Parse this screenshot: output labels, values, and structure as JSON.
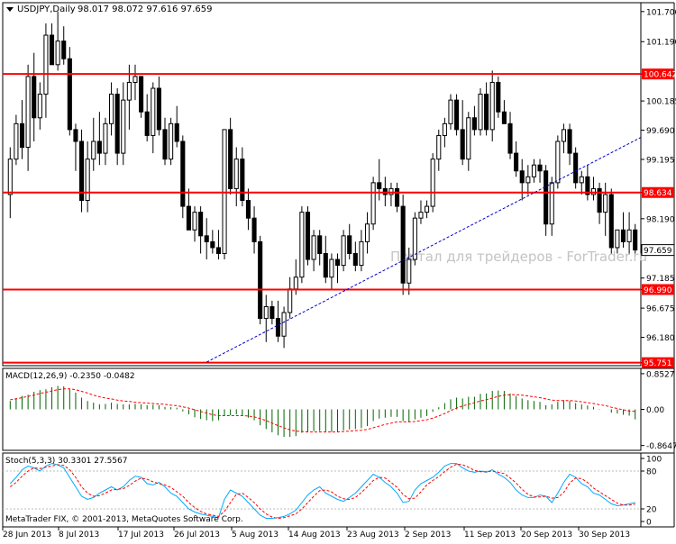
{
  "chart_data": {
    "type": "candlestick",
    "title": "USDJPY,Daily",
    "ohlc_readout": "98.017 98.072 97.616 97.659",
    "price_axis_ticks": [
      "101.700",
      "101.190",
      "100.642",
      "100.185",
      "99.690",
      "99.195",
      "98.634",
      "98.190",
      "97.659",
      "97.185",
      "96.990",
      "96.675",
      "96.180",
      "95.751"
    ],
    "date_axis_ticks": [
      "28 Jun 2013",
      "8 Jul 2013",
      "17 Jul 2013",
      "26 Jul 2013",
      "5 Aug 2013",
      "14 Aug 2013",
      "23 Aug 2013",
      "2 Sep 2013",
      "11 Sep 2013",
      "20 Sep 2013",
      "30 Sep 2013"
    ],
    "ylim": [
      95.7,
      101.85
    ],
    "current_price": 97.659,
    "horizontal_levels": [
      {
        "value": 100.642,
        "label": "100.642",
        "color": "#ff0000"
      },
      {
        "value": 98.634,
        "label": "98.634",
        "color": "#ff0000"
      },
      {
        "value": 96.99,
        "label": "96.990",
        "color": "#ff0000"
      },
      {
        "value": 95.751,
        "label": "95.751",
        "color": "#ff0000"
      }
    ],
    "trendline": {
      "color": "#0000cc",
      "style": "dashed",
      "from": {
        "bar": 33,
        "price": 95.76
      },
      "to": {
        "bar": 97,
        "price": 99.1
      }
    },
    "bars": [
      [
        98.6,
        99.4,
        98.2,
        99.2
      ],
      [
        99.2,
        99.95,
        99.1,
        99.8
      ],
      [
        99.8,
        100.2,
        99.2,
        99.4
      ],
      [
        99.4,
        100.8,
        99.0,
        100.6
      ],
      [
        100.6,
        101.0,
        99.5,
        99.9
      ],
      [
        99.9,
        100.5,
        99.7,
        100.3
      ],
      [
        100.3,
        101.5,
        99.9,
        101.3
      ],
      [
        101.3,
        101.5,
        100.9,
        100.8
      ],
      [
        100.8,
        101.7,
        100.7,
        101.2
      ],
      [
        101.2,
        101.45,
        100.8,
        100.9
      ],
      [
        100.9,
        101.1,
        99.6,
        99.7
      ],
      [
        99.7,
        99.8,
        99.0,
        99.5
      ],
      [
        99.5,
        99.7,
        98.3,
        98.5
      ],
      [
        98.5,
        99.5,
        98.3,
        99.2
      ],
      [
        99.2,
        99.9,
        99.0,
        99.5
      ],
      [
        99.5,
        100.0,
        99.1,
        99.3
      ],
      [
        99.3,
        99.9,
        99.1,
        99.8
      ],
      [
        99.8,
        100.5,
        99.6,
        100.3
      ],
      [
        100.3,
        100.4,
        99.1,
        99.3
      ],
      [
        99.3,
        100.5,
        99.1,
        100.2
      ],
      [
        100.2,
        100.8,
        99.7,
        100.5
      ],
      [
        100.5,
        100.8,
        100.2,
        100.6
      ],
      [
        100.6,
        100.6,
        99.9,
        100.0
      ],
      [
        100.0,
        100.3,
        99.5,
        99.6
      ],
      [
        99.6,
        100.5,
        99.3,
        100.4
      ],
      [
        100.4,
        100.6,
        99.6,
        99.7
      ],
      [
        99.7,
        99.9,
        99.1,
        99.2
      ],
      [
        99.2,
        99.9,
        99.1,
        99.8
      ],
      [
        99.8,
        100.1,
        99.4,
        99.5
      ],
      [
        99.5,
        99.6,
        98.2,
        98.4
      ],
      [
        98.4,
        98.7,
        98.0,
        98.0
      ],
      [
        98.0,
        98.4,
        97.8,
        98.3
      ],
      [
        98.3,
        98.4,
        97.6,
        97.9
      ],
      [
        97.9,
        98.2,
        97.5,
        97.8
      ],
      [
        97.8,
        98.0,
        97.6,
        97.7
      ],
      [
        97.7,
        98.0,
        97.5,
        97.6
      ],
      [
        97.6,
        99.7,
        97.5,
        99.7
      ],
      [
        99.7,
        99.9,
        98.6,
        98.7
      ],
      [
        98.7,
        99.4,
        98.4,
        99.2
      ],
      [
        99.2,
        99.4,
        98.4,
        98.5
      ],
      [
        98.5,
        98.7,
        98.0,
        98.2
      ],
      [
        98.2,
        98.4,
        97.6,
        97.8
      ],
      [
        97.8,
        97.9,
        96.4,
        96.5
      ],
      [
        96.5,
        96.9,
        96.1,
        96.7
      ],
      [
        96.7,
        96.8,
        96.4,
        96.5
      ],
      [
        96.5,
        96.8,
        96.1,
        96.2
      ],
      [
        96.2,
        96.7,
        96.0,
        96.6
      ],
      [
        96.6,
        97.2,
        96.5,
        97.0
      ],
      [
        97.0,
        97.5,
        96.9,
        97.2
      ],
      [
        97.2,
        98.4,
        97.1,
        98.3
      ],
      [
        98.3,
        98.4,
        97.4,
        97.5
      ],
      [
        97.5,
        98.0,
        97.3,
        97.9
      ],
      [
        97.9,
        98.0,
        97.4,
        97.6
      ],
      [
        97.6,
        97.9,
        97.1,
        97.2
      ],
      [
        97.2,
        97.6,
        97.0,
        97.5
      ],
      [
        97.5,
        97.6,
        97.1,
        97.4
      ],
      [
        97.4,
        98.0,
        97.3,
        97.9
      ],
      [
        97.9,
        98.1,
        97.5,
        97.6
      ],
      [
        97.6,
        97.8,
        97.3,
        97.4
      ],
      [
        97.4,
        98.0,
        97.3,
        97.8
      ],
      [
        97.8,
        98.3,
        97.6,
        98.1
      ],
      [
        98.1,
        98.9,
        98.0,
        98.8
      ],
      [
        98.8,
        99.2,
        98.5,
        98.7
      ],
      [
        98.7,
        98.9,
        98.4,
        98.6
      ],
      [
        98.6,
        98.8,
        98.4,
        98.7
      ],
      [
        98.7,
        98.8,
        98.3,
        98.4
      ],
      [
        98.4,
        98.6,
        96.9,
        97.1
      ],
      [
        97.1,
        97.7,
        96.9,
        97.5
      ],
      [
        97.5,
        98.3,
        97.4,
        98.2
      ],
      [
        98.2,
        98.5,
        98.1,
        98.3
      ],
      [
        98.3,
        98.5,
        98.2,
        98.4
      ],
      [
        98.4,
        99.3,
        98.3,
        99.2
      ],
      [
        99.2,
        99.7,
        99.0,
        99.6
      ],
      [
        99.6,
        99.9,
        99.4,
        99.8
      ],
      [
        99.8,
        100.3,
        99.7,
        100.2
      ],
      [
        100.2,
        100.3,
        99.6,
        99.7
      ],
      [
        99.7,
        100.2,
        99.1,
        99.2
      ],
      [
        99.2,
        100.0,
        99.0,
        99.9
      ],
      [
        99.9,
        100.1,
        99.6,
        99.7
      ],
      [
        99.7,
        100.4,
        99.6,
        100.3
      ],
      [
        100.3,
        100.5,
        99.6,
        99.7
      ],
      [
        99.7,
        100.7,
        99.5,
        100.5
      ],
      [
        100.5,
        100.6,
        99.9,
        100.0
      ],
      [
        100.0,
        100.2,
        99.8,
        99.8
      ],
      [
        99.8,
        100.0,
        99.2,
        99.3
      ],
      [
        99.3,
        99.5,
        98.9,
        99.0
      ],
      [
        99.0,
        99.2,
        98.5,
        98.8
      ],
      [
        98.8,
        99.1,
        98.6,
        98.9
      ],
      [
        98.9,
        99.2,
        98.8,
        99.1
      ],
      [
        99.1,
        99.2,
        98.8,
        99.0
      ],
      [
        99.0,
        99.1,
        97.9,
        98.1
      ],
      [
        98.1,
        98.9,
        97.9,
        98.8
      ],
      [
        98.8,
        99.6,
        98.7,
        99.5
      ],
      [
        99.5,
        99.8,
        99.3,
        99.7
      ],
      [
        99.7,
        99.8,
        99.1,
        99.3
      ],
      [
        99.3,
        99.4,
        98.7,
        98.8
      ],
      [
        98.8,
        99.0,
        98.6,
        98.9
      ],
      [
        98.9,
        99.1,
        98.5,
        98.6
      ],
      [
        98.6,
        98.9,
        98.5,
        98.7
      ],
      [
        98.7,
        98.8,
        98.1,
        98.3
      ],
      [
        98.3,
        98.8,
        97.9,
        98.6
      ],
      [
        98.6,
        98.7,
        97.6,
        97.7
      ],
      [
        97.7,
        98.0,
        97.6,
        98.0
      ],
      [
        98.0,
        98.3,
        97.7,
        97.8
      ],
      [
        97.8,
        98.3,
        97.6,
        98.0
      ],
      [
        98.0,
        98.1,
        97.6,
        97.66
      ]
    ],
    "macd": {
      "label": "MACD(12,26,9) -0.2350 -0.0482",
      "ylim": [
        -0.98,
        0.98
      ],
      "ticks": [
        "0.8527",
        "0.00",
        "-0.8647"
      ],
      "hist_color": "#006400",
      "signal_color": "#ff0000",
      "histogram": [
        0.2,
        0.27,
        0.32,
        0.35,
        0.42,
        0.46,
        0.48,
        0.53,
        0.56,
        0.55,
        0.48,
        0.4,
        0.28,
        0.2,
        0.16,
        0.12,
        0.13,
        0.16,
        0.13,
        0.12,
        0.12,
        0.13,
        0.12,
        0.1,
        0.11,
        0.1,
        0.06,
        0.05,
        0.04,
        -0.05,
        -0.12,
        -0.19,
        -0.23,
        -0.26,
        -0.28,
        -0.26,
        -0.15,
        -0.14,
        -0.12,
        -0.14,
        -0.2,
        -0.26,
        -0.38,
        -0.47,
        -0.55,
        -0.62,
        -0.66,
        -0.66,
        -0.64,
        -0.56,
        -0.54,
        -0.52,
        -0.52,
        -0.53,
        -0.54,
        -0.54,
        -0.5,
        -0.48,
        -0.47,
        -0.45,
        -0.4,
        -0.28,
        -0.22,
        -0.2,
        -0.18,
        -0.18,
        -0.28,
        -0.3,
        -0.24,
        -0.2,
        -0.16,
        -0.06,
        0.05,
        0.15,
        0.24,
        0.28,
        0.26,
        0.3,
        0.3,
        0.37,
        0.38,
        0.44,
        0.45,
        0.44,
        0.38,
        0.32,
        0.26,
        0.22,
        0.2,
        0.18,
        0.1,
        0.12,
        0.18,
        0.22,
        0.2,
        0.15,
        0.12,
        0.09,
        0.06,
        0.01,
        0.0,
        -0.08,
        -0.1,
        -0.13,
        -0.15,
        -0.24
      ],
      "signal": [
        0.23,
        0.25,
        0.28,
        0.31,
        0.34,
        0.38,
        0.41,
        0.44,
        0.47,
        0.49,
        0.49,
        0.47,
        0.43,
        0.39,
        0.34,
        0.3,
        0.27,
        0.25,
        0.22,
        0.2,
        0.19,
        0.17,
        0.16,
        0.15,
        0.14,
        0.13,
        0.12,
        0.1,
        0.09,
        0.06,
        0.03,
        -0.01,
        -0.05,
        -0.09,
        -0.13,
        -0.15,
        -0.15,
        -0.15,
        -0.15,
        -0.15,
        -0.16,
        -0.18,
        -0.22,
        -0.27,
        -0.33,
        -0.39,
        -0.44,
        -0.49,
        -0.52,
        -0.53,
        -0.54,
        -0.54,
        -0.54,
        -0.54,
        -0.54,
        -0.54,
        -0.53,
        -0.52,
        -0.51,
        -0.5,
        -0.48,
        -0.44,
        -0.4,
        -0.36,
        -0.33,
        -0.3,
        -0.3,
        -0.3,
        -0.29,
        -0.27,
        -0.25,
        -0.21,
        -0.16,
        -0.1,
        -0.03,
        0.03,
        0.08,
        0.12,
        0.16,
        0.2,
        0.23,
        0.27,
        0.31,
        0.34,
        0.35,
        0.35,
        0.34,
        0.32,
        0.3,
        0.28,
        0.25,
        0.22,
        0.21,
        0.21,
        0.21,
        0.2,
        0.18,
        0.16,
        0.14,
        0.11,
        0.09,
        0.05,
        0.02,
        -0.01,
        -0.04,
        -0.05
      ]
    },
    "stochastic": {
      "label": "Stoch(5,3,3) 30.3301 27.5567",
      "ylim": [
        0,
        100
      ],
      "ticks": [
        "100",
        "80",
        "20",
        "0"
      ],
      "main_color": "#00aaff",
      "signal_color": "#ff0000",
      "main": [
        60,
        70,
        82,
        88,
        85,
        80,
        88,
        92,
        90,
        85,
        70,
        55,
        40,
        35,
        38,
        45,
        50,
        55,
        50,
        55,
        65,
        72,
        70,
        60,
        58,
        62,
        55,
        45,
        40,
        30,
        20,
        15,
        12,
        10,
        8,
        6,
        35,
        50,
        45,
        40,
        30,
        20,
        10,
        5,
        5,
        6,
        8,
        12,
        18,
        30,
        42,
        50,
        55,
        45,
        40,
        35,
        32,
        38,
        45,
        55,
        65,
        75,
        70,
        62,
        55,
        45,
        30,
        32,
        50,
        60,
        65,
        70,
        78,
        88,
        92,
        92,
        85,
        80,
        78,
        80,
        78,
        82,
        75,
        70,
        62,
        50,
        42,
        38,
        38,
        42,
        40,
        30,
        45,
        62,
        75,
        70,
        60,
        55,
        45,
        42,
        35,
        28,
        25,
        26,
        28,
        30
      ],
      "signal": [
        55,
        62,
        72,
        80,
        85,
        84,
        86,
        88,
        90,
        89,
        82,
        70,
        55,
        45,
        40,
        41,
        45,
        50,
        51,
        52,
        57,
        64,
        69,
        67,
        63,
        60,
        58,
        54,
        47,
        40,
        30,
        22,
        16,
        12,
        10,
        8,
        16,
        30,
        43,
        45,
        38,
        30,
        20,
        12,
        7,
        5,
        6,
        9,
        12,
        20,
        30,
        40,
        49,
        50,
        47,
        40,
        36,
        35,
        38,
        46,
        55,
        65,
        70,
        69,
        62,
        54,
        43,
        36,
        37,
        47,
        58,
        65,
        71,
        79,
        86,
        91,
        90,
        86,
        81,
        79,
        79,
        80,
        78,
        76,
        69,
        61,
        51,
        43,
        39,
        39,
        40,
        37,
        38,
        46,
        61,
        69,
        68,
        62,
        53,
        47,
        41,
        35,
        29,
        26,
        26,
        27.6
      ]
    },
    "watermark": "Портал для трейдеров - ForTrader.ru",
    "copyright": "MetaTrader FIX, © 2001-2013, MetaQuotes Software Corp."
  }
}
